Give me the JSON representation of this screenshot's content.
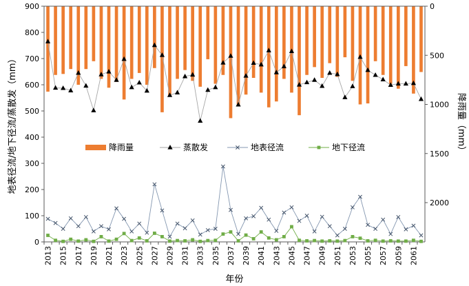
{
  "chart_data": {
    "type": "bar+line",
    "title": "",
    "xlabel": "年份",
    "ylabel_left": "地表径流/地下径流/蒸散发（mm）",
    "ylabel_right": "降雨量（mm）",
    "y_left": {
      "min": 0,
      "max": 900,
      "ticks": [
        0,
        100,
        200,
        300,
        400,
        500,
        600,
        700,
        800,
        900
      ]
    },
    "y_right": {
      "min": 0,
      "max": 2400,
      "inverted": true,
      "ticks": [
        0,
        500,
        1000,
        1500,
        2000
      ],
      "tick_labels": [
        "0",
        "500",
        "1000",
        "1500",
        "2000"
      ]
    },
    "legend_position": "middle",
    "years": [
      2013,
      2014,
      2015,
      2016,
      2017,
      2018,
      2019,
      2020,
      2021,
      2022,
      2023,
      2024,
      2025,
      2026,
      2027,
      2028,
      2029,
      2030,
      2031,
      2032,
      2033,
      2034,
      2035,
      2036,
      2037,
      2038,
      2039,
      2040,
      2041,
      2042,
      2043,
      2044,
      2045,
      2046,
      2047,
      2048,
      2049,
      2050,
      2051,
      2052,
      2053,
      2054,
      2055,
      2056,
      2057,
      2058,
      2059,
      2060,
      2061,
      2062
    ],
    "x_tick_labels": [
      "2013",
      "2015",
      "2017",
      "2019",
      "2021",
      "2023",
      "2025",
      "2027",
      "2029",
      "2031",
      "2033",
      "2035",
      "2037",
      "2039",
      "2041",
      "2043",
      "2045",
      "2047",
      "2049",
      "2051",
      "2053",
      "2055",
      "2057",
      "2059",
      "2061"
    ],
    "series": [
      {
        "name": "降雨量",
        "kind": "bar",
        "axis": "right",
        "color": "#ED7D31",
        "values": [
          870,
          700,
          690,
          640,
          800,
          640,
          560,
          740,
          830,
          770,
          950,
          740,
          680,
          800,
          630,
          1080,
          920,
          740,
          650,
          760,
          820,
          540,
          790,
          700,
          1140,
          1000,
          900,
          730,
          880,
          1030,
          970,
          740,
          880,
          1110,
          700,
          620,
          730,
          580,
          720,
          520,
          760,
          1000,
          990,
          560,
          700,
          790,
          840,
          610,
          890,
          670
        ]
      },
      {
        "name": "蒸散发",
        "kind": "line",
        "axis": "left",
        "color": "#000000",
        "marker": "triangle",
        "values": [
          765,
          588,
          587,
          578,
          645,
          596,
          502,
          639,
          650,
          618,
          698,
          590,
          608,
          577,
          751,
          713,
          560,
          570,
          632,
          638,
          462,
          580,
          590,
          684,
          710,
          524,
          634,
          683,
          677,
          731,
          647,
          670,
          728,
          600,
          609,
          618,
          595,
          645,
          640,
          552,
          594,
          706,
          656,
          637,
          620,
          599,
          604,
          604,
          606,
          545
        ]
      },
      {
        "name": "地表径流",
        "kind": "line",
        "axis": "left",
        "color": "#44546A",
        "marker": "x",
        "values": [
          88,
          72,
          50,
          90,
          60,
          95,
          40,
          60,
          48,
          128,
          88,
          40,
          70,
          35,
          220,
          120,
          20,
          70,
          52,
          82,
          28,
          45,
          50,
          288,
          122,
          30,
          90,
          98,
          130,
          85,
          42,
          112,
          132,
          80,
          100,
          40,
          96,
          60,
          25,
          50,
          132,
          172,
          65,
          50,
          85,
          30,
          95,
          48,
          62,
          25
        ]
      },
      {
        "name": "地下径流",
        "kind": "line",
        "axis": "left",
        "color": "#70AD47",
        "marker": "square",
        "values": [
          25,
          6,
          2,
          10,
          3,
          8,
          2,
          20,
          3,
          10,
          32,
          5,
          15,
          4,
          33,
          20,
          3,
          5,
          4,
          8,
          2,
          5,
          6,
          30,
          38,
          4,
          26,
          12,
          38,
          15,
          8,
          20,
          58,
          6,
          4,
          5,
          3,
          4,
          3,
          5,
          20,
          14,
          4,
          6,
          3,
          4,
          3,
          3,
          6,
          2
        ]
      }
    ]
  }
}
